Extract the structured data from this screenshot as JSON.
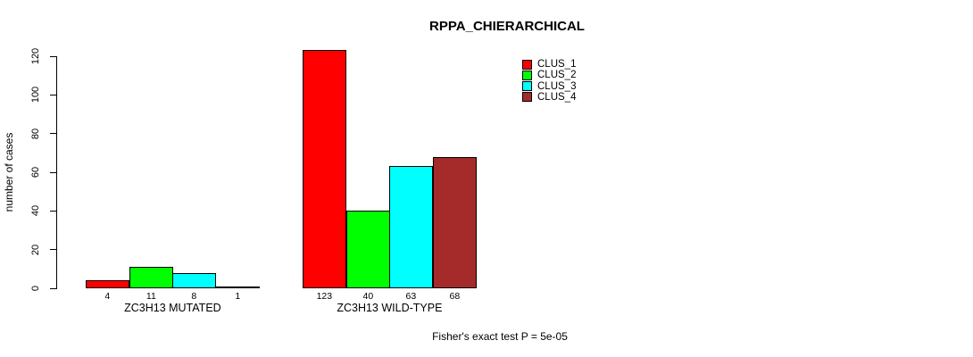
{
  "figure": {
    "title": "RPPA_CHIERARCHICAL",
    "y_axis_label": "number of cases",
    "annotation": "Fisher's exact test P = 5e-05"
  },
  "chart_data": {
    "type": "bar",
    "title": "RPPA_CHIERARCHICAL",
    "xlabel": "",
    "ylabel": "number of cases",
    "ylim": [
      0,
      120
    ],
    "yticks": [
      0,
      20,
      40,
      60,
      80,
      100,
      120
    ],
    "grid": false,
    "categories": [
      "ZC3H13 MUTATED",
      "ZC3H13 WILD-TYPE"
    ],
    "series": [
      {
        "name": "CLUS_1",
        "color": "#ff0000",
        "values": [
          4,
          123
        ]
      },
      {
        "name": "CLUS_2",
        "color": "#00ff00",
        "values": [
          11,
          40
        ]
      },
      {
        "name": "CLUS_3",
        "color": "#00ffff",
        "values": [
          8,
          63
        ]
      },
      {
        "name": "CLUS_4",
        "color": "#a52a2a",
        "values": [
          1,
          68
        ]
      }
    ],
    "bar_value_labels": [
      [
        4,
        11,
        8,
        1
      ],
      [
        123,
        40,
        63,
        68
      ]
    ],
    "legend": {
      "position": "top-right",
      "entries": [
        "CLUS_1",
        "CLUS_2",
        "CLUS_3",
        "CLUS_4"
      ]
    },
    "annotation": "Fisher's exact test P = 5e-05"
  }
}
